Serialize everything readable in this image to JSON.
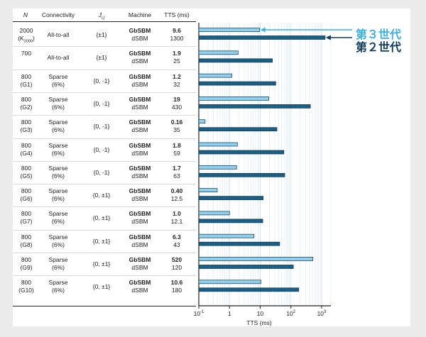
{
  "table": {
    "headers": {
      "n": "N",
      "conn": "Connectivity",
      "j": "J",
      "jsub": "i,j",
      "machine": "Machine",
      "tts": "TTS (ms)"
    },
    "rows": [
      {
        "n": "2000",
        "n2": "(K",
        "n2sub": "2000",
        "n2end": ")",
        "conn": "All-to-all",
        "conn2": "",
        "j": "{±1}",
        "m1": "GbSBM",
        "m2": "dSBM",
        "t1": "9.6",
        "t2": "1300"
      },
      {
        "n": "700",
        "n2": "",
        "conn": "All-to-all",
        "conn2": "",
        "j": "{±1}",
        "m1": "GbSBM",
        "m2": "dSBM",
        "t1": "1.9",
        "t2": "25"
      },
      {
        "n": "800",
        "n2": "(G1)",
        "conn": "Sparse",
        "conn2": "(6%)",
        "j": "{0, -1}",
        "m1": "GbSBM",
        "m2": "dSBM",
        "t1": "1.2",
        "t2": "32"
      },
      {
        "n": "800",
        "n2": "(G2)",
        "conn": "Sparse",
        "conn2": "(6%)",
        "j": "{0, -1}",
        "m1": "GbSBM",
        "m2": "dSBM",
        "t1": "19",
        "t2": "430"
      },
      {
        "n": "800",
        "n2": "(G3)",
        "conn": "Sparse",
        "conn2": "(6%)",
        "j": "{0, -1}",
        "m1": "GbSBM",
        "m2": "dSBM",
        "t1": "0.16",
        "t2": "35"
      },
      {
        "n": "800",
        "n2": "(G4)",
        "conn": "Sparse",
        "conn2": "(6%)",
        "j": "{0, -1}",
        "m1": "GbSBM",
        "m2": "dSBM",
        "t1": "1.8",
        "t2": "59"
      },
      {
        "n": "800",
        "n2": "(G5)",
        "conn": "Sparse",
        "conn2": "(6%)",
        "j": "{0, -1}",
        "m1": "GbSBM",
        "m2": "dSBM",
        "t1": "1.7",
        "t2": "63"
      },
      {
        "n": "800",
        "n2": "(G6)",
        "conn": "Sparse",
        "conn2": "(6%)",
        "j": "{0, ±1}",
        "m1": "GbSBM",
        "m2": "dSBM",
        "t1": "0.40",
        "t2": "12.5"
      },
      {
        "n": "800",
        "n2": "(G7)",
        "conn": "Sparse",
        "conn2": "(6%)",
        "j": "{0, ±1}",
        "m1": "GbSBM",
        "m2": "dSBM",
        "t1": "1.0",
        "t2": "12.1"
      },
      {
        "n": "800",
        "n2": "(G8)",
        "conn": "Sparse",
        "conn2": "(6%)",
        "j": "{0, ±1}",
        "m1": "GbSBM",
        "m2": "dSBM",
        "t1": "6.3",
        "t2": "43"
      },
      {
        "n": "800",
        "n2": "(G9)",
        "conn": "Sparse",
        "conn2": "(6%)",
        "j": "{0, ±1}",
        "m1": "GbSBM",
        "m2": "dSBM",
        "t1": "520",
        "t2": "120"
      },
      {
        "n": "800",
        "n2": "(G10)",
        "conn": "Sparse",
        "conn2": "(6%)",
        "j": "{0, ±1}",
        "m1": "GbSBM",
        "m2": "dSBM",
        "t1": "10.6",
        "t2": "180"
      }
    ]
  },
  "legend": {
    "gen3": "第３世代",
    "gen2": "第２世代"
  },
  "colors": {
    "gen3": "#8ed0ee",
    "gen3_label": "#3bb0e3",
    "gen2": "#1a5f85",
    "gen2_label": "#0f3d5c",
    "bar_edge": "#0d3550"
  },
  "chart_data": {
    "type": "bar",
    "orientation": "horizontal",
    "scale": "log",
    "xlabel": "TTS (ms)",
    "xlim": [
      0.1,
      2000
    ],
    "xticks": [
      {
        "v": 0.1,
        "base": "10",
        "exp": "-1"
      },
      {
        "v": 1,
        "base": "1",
        "exp": ""
      },
      {
        "v": 10,
        "base": "10",
        "exp": ""
      },
      {
        "v": 100,
        "base": "10",
        "exp": "2"
      },
      {
        "v": 1000,
        "base": "10",
        "exp": "3"
      }
    ],
    "categories": [
      "2000 (K2000)",
      "700",
      "800 (G1)",
      "800 (G2)",
      "800 (G3)",
      "800 (G4)",
      "800 (G5)",
      "800 (G6)",
      "800 (G7)",
      "800 (G8)",
      "800 (G9)",
      "800 (G10)"
    ],
    "series": [
      {
        "name": "GbSBM (第３世代)",
        "values": [
          9.6,
          1.9,
          1.2,
          19,
          0.16,
          1.8,
          1.7,
          0.4,
          1.0,
          6.3,
          520,
          10.6
        ]
      },
      {
        "name": "dSBM (第２世代)",
        "values": [
          1300,
          25,
          32,
          430,
          35,
          59,
          63,
          12.5,
          12.1,
          43,
          120,
          180
        ]
      }
    ]
  }
}
